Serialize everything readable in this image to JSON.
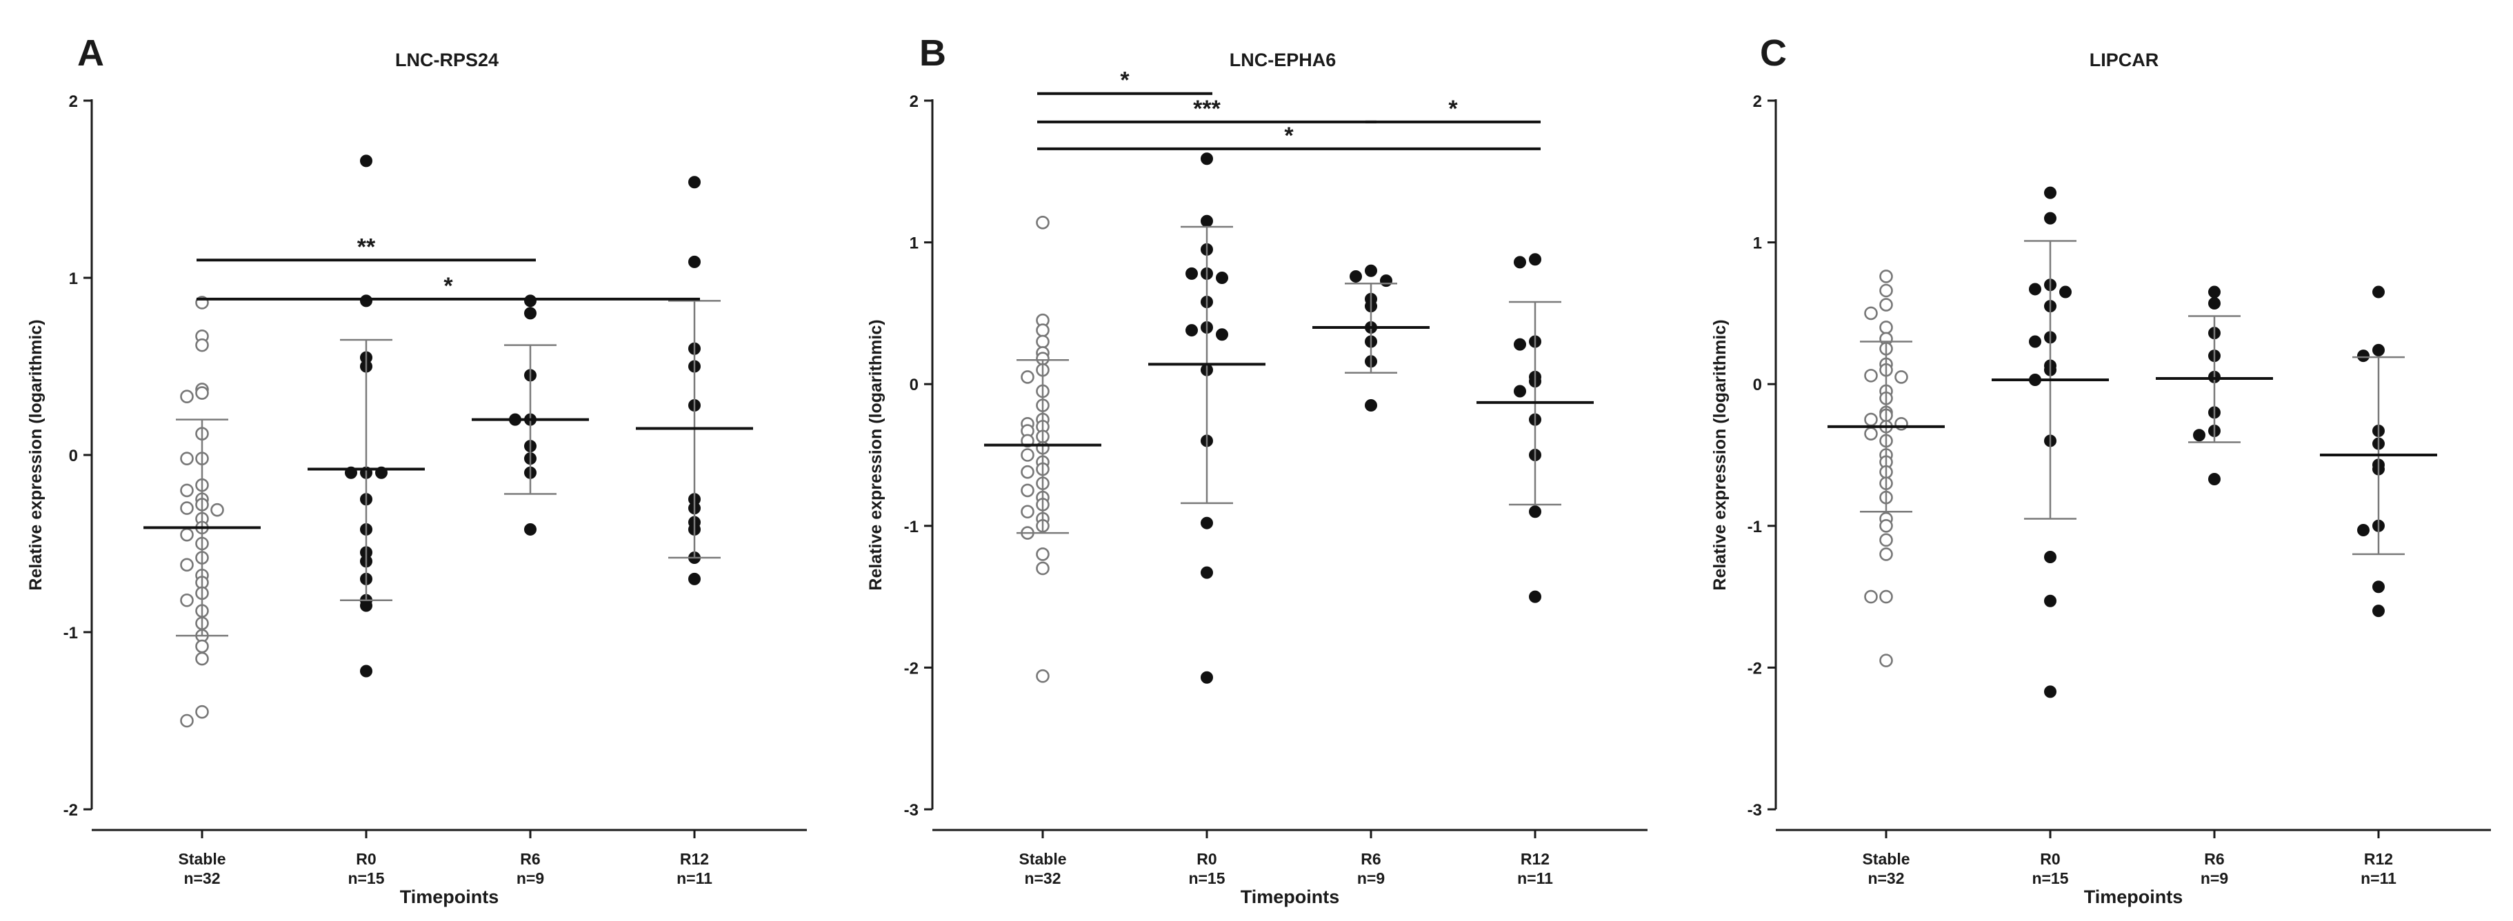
{
  "chart_data": [
    {
      "panel_letter": "A",
      "type": "scatter",
      "title": "LNC-RPS24",
      "xlabel": "Timepoints",
      "ylabel": "Relative expression (logarithmic)",
      "ylim": [
        -2,
        2
      ],
      "yticks": [
        -2,
        -1,
        0,
        1,
        2
      ],
      "grid": false,
      "categories": [
        "Stable",
        "R0",
        "R6",
        "R12"
      ],
      "group_sizes": [
        "n=32",
        "n=15",
        "n=9",
        "n=11"
      ],
      "marker_fill": [
        "open",
        "filled",
        "filled",
        "filled"
      ],
      "series": [
        {
          "name": "Stable",
          "mean": -0.41,
          "sd_low": -1.02,
          "sd_high": 0.2,
          "values": [
            0.86,
            0.67,
            0.62,
            0.37,
            0.35,
            0.33,
            0.12,
            -0.02,
            -0.02,
            -0.17,
            -0.2,
            -0.25,
            -0.28,
            -0.3,
            -0.31,
            -0.36,
            -0.41,
            -0.45,
            -0.5,
            -0.58,
            -0.62,
            -0.68,
            -0.72,
            -0.78,
            -0.82,
            -0.88,
            -0.95,
            -1.02,
            -1.08,
            -1.15,
            -1.45,
            -1.5
          ]
        },
        {
          "name": "R0",
          "mean": -0.08,
          "sd_low": -0.82,
          "sd_high": 0.65,
          "values": [
            1.66,
            0.87,
            0.55,
            0.5,
            -0.1,
            -0.1,
            -0.1,
            -0.25,
            -0.42,
            -0.55,
            -0.6,
            -0.7,
            -0.82,
            -0.85,
            -1.22
          ]
        },
        {
          "name": "R6",
          "mean": 0.2,
          "sd_low": -0.22,
          "sd_high": 0.62,
          "values": [
            0.87,
            0.8,
            0.45,
            0.2,
            0.2,
            0.05,
            -0.02,
            -0.1,
            -0.42
          ]
        },
        {
          "name": "R12",
          "mean": 0.15,
          "sd_low": -0.58,
          "sd_high": 0.87,
          "values": [
            1.54,
            1.09,
            0.6,
            0.5,
            0.28,
            -0.25,
            -0.3,
            -0.38,
            -0.42,
            -0.58,
            -0.7
          ]
        }
      ],
      "significance": [
        {
          "from": "Stable",
          "to": "R6",
          "label": "**",
          "level": 1.1
        },
        {
          "from": "Stable",
          "to": "R12",
          "label": "*",
          "level": 0.88
        }
      ]
    },
    {
      "panel_letter": "B",
      "type": "scatter",
      "title": "LNC-EPHA6",
      "xlabel": "Timepoints",
      "ylabel": "Relative expression (logarithmic)",
      "ylim": [
        -3,
        2
      ],
      "yticks": [
        -3,
        -2,
        -1,
        0,
        1,
        2
      ],
      "grid": false,
      "categories": [
        "Stable",
        "R0",
        "R6",
        "R12"
      ],
      "group_sizes": [
        "n=32",
        "n=15",
        "n=9",
        "n=11"
      ],
      "marker_fill": [
        "open",
        "filled",
        "filled",
        "filled"
      ],
      "series": [
        {
          "name": "Stable",
          "mean": -0.43,
          "sd_low": -1.05,
          "sd_high": 0.17,
          "values": [
            1.14,
            0.45,
            0.38,
            0.3,
            0.22,
            0.18,
            0.1,
            0.05,
            -0.05,
            -0.15,
            -0.25,
            -0.28,
            -0.3,
            -0.33,
            -0.37,
            -0.4,
            -0.45,
            -0.5,
            -0.55,
            -0.6,
            -0.62,
            -0.7,
            -0.75,
            -0.8,
            -0.85,
            -0.9,
            -0.95,
            -1.0,
            -1.05,
            -1.2,
            -1.3,
            -2.06
          ]
        },
        {
          "name": "R0",
          "mean": 0.14,
          "sd_low": -0.84,
          "sd_high": 1.11,
          "values": [
            1.59,
            1.15,
            0.95,
            0.78,
            0.78,
            0.75,
            0.58,
            0.4,
            0.38,
            0.35,
            0.1,
            -0.4,
            -0.98,
            -1.33,
            -2.07
          ]
        },
        {
          "name": "R6",
          "mean": 0.4,
          "sd_low": 0.08,
          "sd_high": 0.71,
          "values": [
            0.8,
            0.76,
            0.73,
            0.6,
            0.55,
            0.4,
            0.3,
            0.16,
            -0.15
          ]
        },
        {
          "name": "R12",
          "mean": -0.13,
          "sd_low": -0.85,
          "sd_high": 0.58,
          "values": [
            0.88,
            0.86,
            0.3,
            0.28,
            0.05,
            0.02,
            -0.05,
            -0.25,
            -0.5,
            -0.9,
            -1.5
          ]
        }
      ],
      "significance": [
        {
          "from": "Stable",
          "to": "R0",
          "label": "*",
          "level": 2.05
        },
        {
          "from": "Stable",
          "to": "R6",
          "label": "***",
          "level": 1.85
        },
        {
          "from": "R6",
          "to": "R12",
          "label": "*",
          "level": 1.85
        },
        {
          "from": "Stable",
          "to": "R12",
          "label": "*",
          "level": 1.66
        }
      ]
    },
    {
      "panel_letter": "C",
      "type": "scatter",
      "title": "LIPCAR",
      "xlabel": "Timepoints",
      "ylabel": "Relative expression (logarithmic)",
      "ylim": [
        -3,
        2
      ],
      "yticks": [
        -3,
        -2,
        -1,
        0,
        1,
        2
      ],
      "grid": false,
      "categories": [
        "Stable",
        "R0",
        "R6",
        "R12"
      ],
      "group_sizes": [
        "n=32",
        "n=15",
        "n=9",
        "n=11"
      ],
      "marker_fill": [
        "open",
        "filled",
        "filled",
        "filled"
      ],
      "series": [
        {
          "name": "Stable",
          "mean": -0.3,
          "sd_low": -0.9,
          "sd_high": 0.3,
          "values": [
            0.76,
            0.66,
            0.56,
            0.5,
            0.4,
            0.32,
            0.25,
            0.14,
            0.1,
            0.06,
            0.05,
            -0.05,
            -0.1,
            -0.2,
            -0.22,
            -0.25,
            -0.28,
            -0.3,
            -0.35,
            -0.4,
            -0.5,
            -0.55,
            -0.62,
            -0.7,
            -0.8,
            -0.95,
            -1.0,
            -1.1,
            -1.2,
            -1.5,
            -1.5,
            -1.95
          ]
        },
        {
          "name": "R0",
          "mean": 0.03,
          "sd_low": -0.95,
          "sd_high": 1.01,
          "values": [
            1.35,
            1.17,
            0.7,
            0.67,
            0.65,
            0.55,
            0.33,
            0.3,
            0.13,
            0.1,
            -0.4,
            -1.22,
            -1.53,
            -2.17,
            0.03
          ]
        },
        {
          "name": "R6",
          "mean": 0.04,
          "sd_low": -0.41,
          "sd_high": 0.48,
          "values": [
            0.65,
            0.57,
            0.36,
            0.2,
            0.05,
            -0.2,
            -0.33,
            -0.36,
            -0.67
          ]
        },
        {
          "name": "R12",
          "mean": -0.5,
          "sd_low": -1.2,
          "sd_high": 0.19,
          "values": [
            0.65,
            0.24,
            0.2,
            -0.33,
            -0.42,
            -0.57,
            -0.6,
            -1.0,
            -1.03,
            -1.43,
            -1.6
          ]
        }
      ],
      "significance": []
    }
  ]
}
